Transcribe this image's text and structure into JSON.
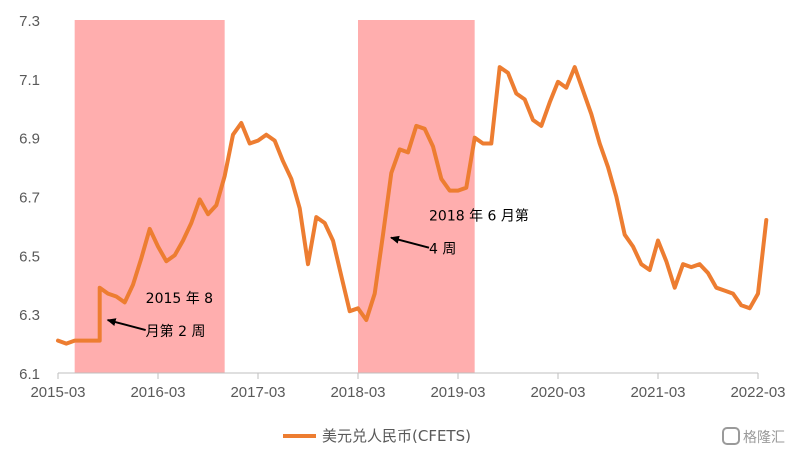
{
  "watermark": "格隆汇",
  "chart_data": {
    "type": "line",
    "title": "",
    "xlabel": "",
    "ylabel": "",
    "ylim": [
      6.1,
      7.3
    ],
    "yticks": [
      "6.1",
      "6.3",
      "6.5",
      "6.7",
      "6.9",
      "7.1",
      "7.3"
    ],
    "xlim": [
      "2015-03",
      "2022-03"
    ],
    "xticks": [
      "2015-03",
      "2016-03",
      "2017-03",
      "2018-03",
      "2019-03",
      "2020-03",
      "2021-03",
      "2022-03"
    ],
    "grid": false,
    "legend_position": "bottom",
    "series": [
      {
        "name": "美元兑人民币(CFETS)",
        "color": "#ED7D31",
        "points": [
          [
            "2015-03",
            6.21
          ],
          [
            "2015-04",
            6.2
          ],
          [
            "2015-05",
            6.21
          ],
          [
            "2015-06",
            6.21
          ],
          [
            "2015-07",
            6.21
          ],
          [
            "2015-08",
            6.21
          ],
          [
            "2015-08",
            6.39
          ],
          [
            "2015-09",
            6.37
          ],
          [
            "2015-10",
            6.36
          ],
          [
            "2015-11",
            6.34
          ],
          [
            "2015-12",
            6.4
          ],
          [
            "2016-01",
            6.49
          ],
          [
            "2016-02",
            6.59
          ],
          [
            "2016-03",
            6.53
          ],
          [
            "2016-04",
            6.48
          ],
          [
            "2016-05",
            6.5
          ],
          [
            "2016-06",
            6.55
          ],
          [
            "2016-07",
            6.61
          ],
          [
            "2016-08",
            6.69
          ],
          [
            "2016-09",
            6.64
          ],
          [
            "2016-10",
            6.67
          ],
          [
            "2016-11",
            6.77
          ],
          [
            "2016-12",
            6.91
          ],
          [
            "2017-01",
            6.95
          ],
          [
            "2017-02",
            6.88
          ],
          [
            "2017-03",
            6.89
          ],
          [
            "2017-04",
            6.91
          ],
          [
            "2017-05",
            6.89
          ],
          [
            "2017-06",
            6.82
          ],
          [
            "2017-07",
            6.76
          ],
          [
            "2017-08",
            6.66
          ],
          [
            "2017-09",
            6.47
          ],
          [
            "2017-10",
            6.63
          ],
          [
            "2017-11",
            6.61
          ],
          [
            "2017-12",
            6.55
          ],
          [
            "2018-01",
            6.43
          ],
          [
            "2018-02",
            6.31
          ],
          [
            "2018-03",
            6.32
          ],
          [
            "2018-04",
            6.28
          ],
          [
            "2018-05",
            6.37
          ],
          [
            "2018-06",
            6.57
          ],
          [
            "2018-07",
            6.78
          ],
          [
            "2018-08",
            6.86
          ],
          [
            "2018-09",
            6.85
          ],
          [
            "2018-10",
            6.94
          ],
          [
            "2018-11",
            6.93
          ],
          [
            "2018-12",
            6.87
          ],
          [
            "2019-01",
            6.76
          ],
          [
            "2019-02",
            6.72
          ],
          [
            "2019-03",
            6.72
          ],
          [
            "2019-04",
            6.73
          ],
          [
            "2019-05",
            6.9
          ],
          [
            "2019-06",
            6.88
          ],
          [
            "2019-07",
            6.88
          ],
          [
            "2019-08",
            7.14
          ],
          [
            "2019-09",
            7.12
          ],
          [
            "2019-10",
            7.05
          ],
          [
            "2019-11",
            7.03
          ],
          [
            "2019-12",
            6.96
          ],
          [
            "2020-01",
            6.94
          ],
          [
            "2020-02",
            7.02
          ],
          [
            "2020-03",
            7.09
          ],
          [
            "2020-04",
            7.07
          ],
          [
            "2020-05",
            7.14
          ],
          [
            "2020-06",
            7.06
          ],
          [
            "2020-07",
            6.98
          ],
          [
            "2020-08",
            6.88
          ],
          [
            "2020-09",
            6.8
          ],
          [
            "2020-10",
            6.7
          ],
          [
            "2020-11",
            6.57
          ],
          [
            "2020-12",
            6.53
          ],
          [
            "2021-01",
            6.47
          ],
          [
            "2021-02",
            6.45
          ],
          [
            "2021-03",
            6.55
          ],
          [
            "2021-04",
            6.48
          ],
          [
            "2021-05",
            6.39
          ],
          [
            "2021-06",
            6.47
          ],
          [
            "2021-07",
            6.46
          ],
          [
            "2021-08",
            6.47
          ],
          [
            "2021-09",
            6.44
          ],
          [
            "2021-10",
            6.39
          ],
          [
            "2021-11",
            6.38
          ],
          [
            "2021-12",
            6.37
          ],
          [
            "2022-01",
            6.33
          ],
          [
            "2022-02",
            6.32
          ],
          [
            "2022-03",
            6.37
          ],
          [
            "2022-04",
            6.62
          ]
        ]
      }
    ],
    "shaded_periods": [
      {
        "start": "2015-05",
        "end": "2016-11",
        "color": "#FFAEAE"
      },
      {
        "start": "2018-03",
        "end": "2019-05",
        "color": "#FFAEAE"
      }
    ],
    "annotations": [
      {
        "lines": [
          "2015  年  8",
          "月第 2 周"
        ],
        "date": "2015-08",
        "value": 6.28
      },
      {
        "lines": [
          "2018  年  6 月第",
          "4 周"
        ],
        "date": "2018-06",
        "value": 6.56
      }
    ]
  }
}
